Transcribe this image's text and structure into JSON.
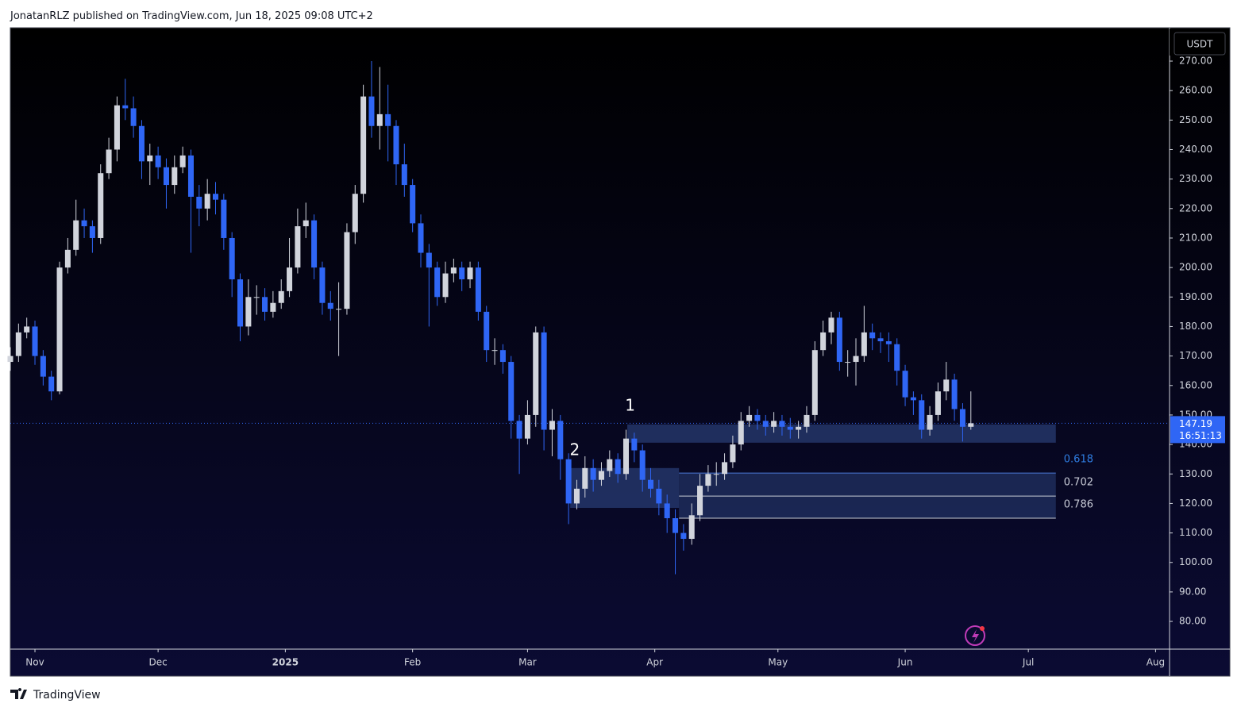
{
  "header": {
    "text": "JonatanRLZ published on TradingView.com, Jun 18, 2025 09:08 UTC+2"
  },
  "footer": {
    "brand": "TradingView"
  },
  "chart_data": {
    "type": "candlestick",
    "currency": "USDT",
    "up_color": "#d1d4dc",
    "down_color": "#2f66f5",
    "xlim": [
      -6,
      276.4
    ],
    "xticks": [
      {
        "value": 0,
        "label": "Nov"
      },
      {
        "value": 30,
        "label": "Dec"
      },
      {
        "value": 61,
        "label": "2025"
      },
      {
        "value": 92,
        "label": "Feb"
      },
      {
        "value": 120,
        "label": "Mar"
      },
      {
        "value": 151,
        "label": "Apr"
      },
      {
        "value": 181,
        "label": "May"
      },
      {
        "value": 212,
        "label": "Jun"
      },
      {
        "value": 242,
        "label": "Jul"
      },
      {
        "value": 273,
        "label": "Aug"
      }
    ],
    "ylim": [
      70.6,
      281.3
    ],
    "yticks": [
      {
        "value": 80,
        "label": "80.00"
      },
      {
        "value": 90,
        "label": "90.00"
      },
      {
        "value": 100,
        "label": "100.00"
      },
      {
        "value": 110,
        "label": "110.00"
      },
      {
        "value": 120,
        "label": "120.00"
      },
      {
        "value": 130,
        "label": "130.00"
      },
      {
        "value": 140,
        "label": "140.00"
      },
      {
        "value": 150,
        "label": "150.00"
      },
      {
        "value": 160,
        "label": "160.00"
      },
      {
        "value": 170,
        "label": "170.00"
      },
      {
        "value": 180,
        "label": "180.00"
      },
      {
        "value": 190,
        "label": "190.00"
      },
      {
        "value": 200,
        "label": "200.00"
      },
      {
        "value": 210,
        "label": "210.00"
      },
      {
        "value": 220,
        "label": "220.00"
      },
      {
        "value": 230,
        "label": "230.00"
      },
      {
        "value": 240,
        "label": "240.00"
      },
      {
        "value": 250,
        "label": "250.00"
      },
      {
        "value": 260,
        "label": "260.00"
      },
      {
        "value": 270,
        "label": "270.00"
      }
    ],
    "x": [
      -6,
      -4,
      -2,
      0,
      2,
      4,
      6,
      8,
      10,
      12,
      14,
      16,
      18,
      20,
      22,
      24,
      26,
      28,
      30,
      32,
      34,
      36,
      38,
      40,
      42,
      44,
      46,
      48,
      50,
      52,
      54,
      56,
      58,
      60,
      62,
      64,
      66,
      68,
      70,
      72,
      74,
      76,
      78,
      80,
      82,
      84,
      86,
      88,
      90,
      92,
      94,
      96,
      98,
      100,
      102,
      104,
      106,
      108,
      110,
      112,
      114,
      116,
      118,
      120,
      122,
      124,
      126,
      128,
      130,
      132,
      134,
      136,
      138,
      140,
      142,
      144,
      146,
      148,
      150,
      152,
      154,
      156,
      158,
      160,
      162,
      164,
      166,
      168,
      170,
      172,
      174,
      176,
      178,
      180,
      182,
      184,
      186,
      188,
      190,
      192,
      194,
      196,
      198,
      200,
      202,
      204,
      206,
      208,
      210,
      212,
      214,
      216,
      218,
      220,
      222,
      224,
      226,
      228
    ],
    "open": [
      168,
      170,
      178,
      180,
      170,
      163,
      158,
      200,
      206,
      216,
      214,
      210,
      232,
      240,
      255,
      254,
      248,
      236,
      238,
      234,
      228,
      234,
      238,
      224,
      220,
      225,
      223,
      210,
      196,
      180,
      190,
      190,
      185,
      188,
      192,
      200,
      214,
      216,
      200,
      188,
      186,
      186,
      212,
      225,
      258,
      248,
      252,
      248,
      235,
      228,
      215,
      205,
      200,
      190,
      198,
      200,
      196,
      200,
      185,
      172,
      172,
      168,
      148,
      142,
      150,
      178,
      145,
      148,
      135,
      120,
      125,
      132,
      128,
      131,
      135,
      130,
      142,
      138,
      128,
      125,
      120,
      115,
      110,
      108,
      116,
      126,
      130,
      130,
      134,
      140,
      148,
      150,
      148,
      146,
      148,
      146,
      145,
      146,
      150,
      172,
      178,
      183,
      168,
      168,
      170,
      178,
      176,
      175,
      174,
      165,
      156,
      155,
      145,
      150,
      158,
      162,
      152,
      146
    ],
    "high": [
      173,
      181,
      183,
      182,
      172,
      165,
      202,
      210,
      223,
      220,
      216,
      235,
      244,
      258,
      264,
      258,
      250,
      242,
      241,
      237,
      238,
      241,
      240,
      228,
      230,
      229,
      225,
      212,
      198,
      196,
      194,
      193,
      192,
      196,
      210,
      220,
      222,
      218,
      202,
      192,
      195,
      215,
      228,
      262,
      270,
      268,
      262,
      250,
      242,
      230,
      218,
      208,
      202,
      202,
      203,
      202,
      202,
      202,
      187,
      176,
      174,
      170,
      150,
      155,
      180,
      180,
      152,
      150,
      137,
      128,
      136,
      135,
      134,
      138,
      137,
      145,
      144,
      140,
      132,
      128,
      123,
      118,
      113,
      120,
      130,
      133,
      134,
      137,
      143,
      151,
      153,
      152,
      150,
      151,
      150,
      149,
      148,
      153,
      175,
      182,
      185,
      185,
      172,
      176,
      187,
      181,
      178,
      178,
      176,
      167,
      158,
      157,
      153,
      161,
      168,
      164,
      154,
      158
    ],
    "low": [
      165,
      168,
      176,
      167,
      160,
      155,
      157,
      198,
      204,
      210,
      205,
      208,
      230,
      236,
      250,
      244,
      230,
      228,
      230,
      220,
      225,
      232,
      205,
      214,
      216,
      218,
      206,
      190,
      175,
      177,
      184,
      182,
      183,
      186,
      190,
      198,
      210,
      196,
      184,
      182,
      170,
      184,
      208,
      222,
      244,
      240,
      236,
      228,
      224,
      212,
      200,
      180,
      187,
      188,
      195,
      192,
      193,
      182,
      168,
      167,
      164,
      142,
      130,
      140,
      146,
      138,
      136,
      128,
      113,
      118,
      122,
      124,
      126,
      129,
      127,
      128,
      134,
      124,
      122,
      116,
      110,
      96,
      104,
      106,
      114,
      124,
      126,
      128,
      132,
      138,
      146,
      145,
      143,
      144,
      143,
      142,
      142,
      144,
      148,
      170,
      174,
      165,
      163,
      160,
      168,
      172,
      171,
      168,
      160,
      153,
      150,
      142,
      143,
      148,
      155,
      148,
      141,
      145
    ],
    "close": [
      170,
      178,
      180,
      170,
      163,
      158,
      200,
      206,
      216,
      214,
      210,
      232,
      240,
      255,
      254,
      248,
      236,
      238,
      234,
      228,
      234,
      238,
      224,
      220,
      225,
      223,
      210,
      196,
      180,
      190,
      190,
      185,
      188,
      192,
      200,
      214,
      216,
      200,
      188,
      186,
      186,
      212,
      225,
      258,
      248,
      252,
      248,
      235,
      228,
      215,
      205,
      200,
      190,
      198,
      200,
      196,
      200,
      185,
      172,
      172,
      168,
      148,
      142,
      150,
      178,
      145,
      148,
      135,
      120,
      125,
      132,
      128,
      131,
      135,
      130,
      142,
      138,
      128,
      125,
      120,
      115,
      110,
      108,
      116,
      126,
      130,
      130,
      134,
      140,
      148,
      150,
      148,
      146,
      148,
      146,
      145,
      146,
      150,
      172,
      178,
      183,
      168,
      168,
      170,
      178,
      176,
      175,
      174,
      165,
      156,
      155,
      145,
      150,
      158,
      162,
      152,
      146,
      147.19
    ],
    "last_price": {
      "value": 147.19,
      "label": "147.19",
      "countdown": "16:51:13"
    },
    "zones": [
      {
        "from": 144.3,
        "to": 248.7,
        "top": 146.8,
        "bottom": 140.6
      },
      {
        "from": 130.4,
        "to": 156.9,
        "top": 132,
        "bottom": 118.5
      }
    ],
    "fib": {
      "from": 156.9,
      "to": 248.7,
      "levels": [
        {
          "label": "0.618",
          "price": 130.3
        },
        {
          "label": "0.702",
          "price": 122.5
        },
        {
          "label": "0.786",
          "price": 115
        }
      ]
    },
    "annotations": [
      {
        "text": "1",
        "x": 145,
        "y": 152.9
      },
      {
        "text": "2",
        "x": 131.5,
        "y": 137.9
      }
    ]
  }
}
